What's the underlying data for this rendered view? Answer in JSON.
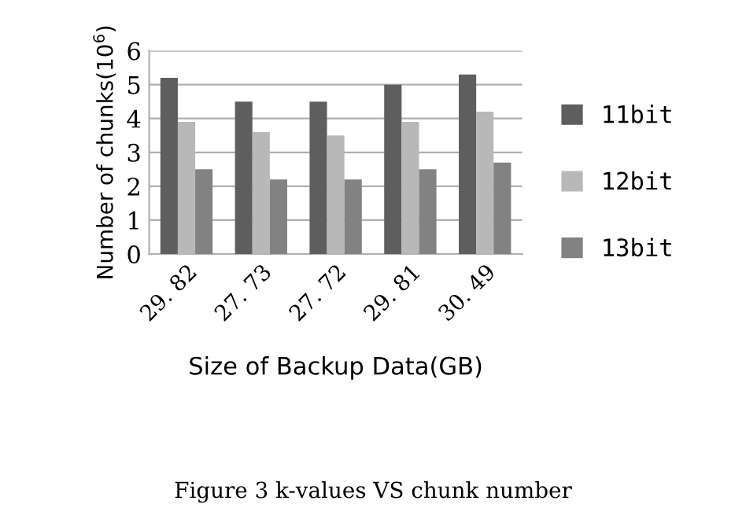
{
  "chart_data": {
    "type": "bar",
    "xlabel": "Size of Backup Data(GB)",
    "ylabel": "Number of chunks(10$^{6}$)",
    "categories": [
      "29. 82",
      "27. 73",
      "27. 72",
      "29. 81",
      "30. 49"
    ],
    "series": [
      {
        "name": "11bit",
        "color": "#5e5e5e",
        "values": [
          5.2,
          4.5,
          4.5,
          5.0,
          5.3
        ]
      },
      {
        "name": "12bit",
        "color": "#b8b8b8",
        "values": [
          3.9,
          3.6,
          3.5,
          3.9,
          4.2
        ]
      },
      {
        "name": "13bit",
        "color": "#828282",
        "values": [
          2.5,
          2.2,
          2.2,
          2.5,
          2.7
        ]
      }
    ],
    "ylim": [
      0,
      6
    ],
    "yticks": [
      0,
      1,
      2,
      3,
      4,
      5,
      6
    ],
    "grid": "y",
    "legend": "right",
    "annotations": [
      "Figure 3 k-values VS chunk number"
    ]
  }
}
